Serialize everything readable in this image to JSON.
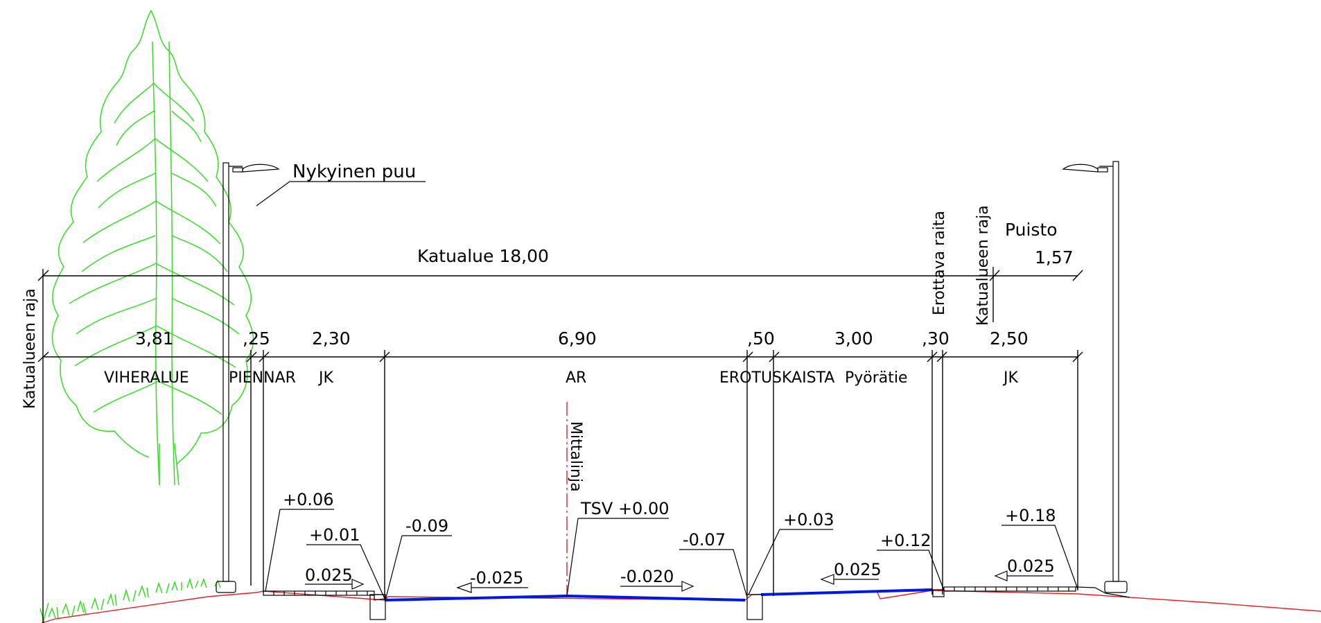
{
  "labels": {
    "tree_label": "Nykyinen puu",
    "street_area": "Katualue 18,00",
    "boundary_left": "Katualueen raja",
    "boundary_right": "Katualueen raja",
    "separating_strip": "Erottava raita",
    "park": "Puisto",
    "park_width": "1,57",
    "measure_line": "Mittalinja"
  },
  "sections": [
    {
      "width": "3,81",
      "name": "VIHERALUE"
    },
    {
      "width": ",25",
      "name": "PIENNAR"
    },
    {
      "width": "2,30",
      "name": "JK"
    },
    {
      "width": "6,90",
      "name": "AR"
    },
    {
      "width": ",50",
      "name": "EROTUSKAISTA"
    },
    {
      "width": "3,00",
      "name": "Pyörätie"
    },
    {
      "width": ",30",
      "name": ""
    },
    {
      "width": "2,50",
      "name": "JK"
    }
  ],
  "elevations": {
    "e1": "+0.06",
    "e2": "+0.01",
    "e3": "-0.09",
    "e4": "TSV +0.00",
    "e5": "-0.07",
    "e6": "+0.03",
    "e7": "+0.12",
    "e8": "+0.18"
  },
  "slopes": {
    "s1": "0.025",
    "s2": "-0.025",
    "s3": "-0.020",
    "s4": "0.025",
    "s5": "0.025"
  },
  "colors": {
    "tree": "#33dd22",
    "ground": "#e02020",
    "paved_surface": "#0018e0",
    "lines": "#000000"
  }
}
